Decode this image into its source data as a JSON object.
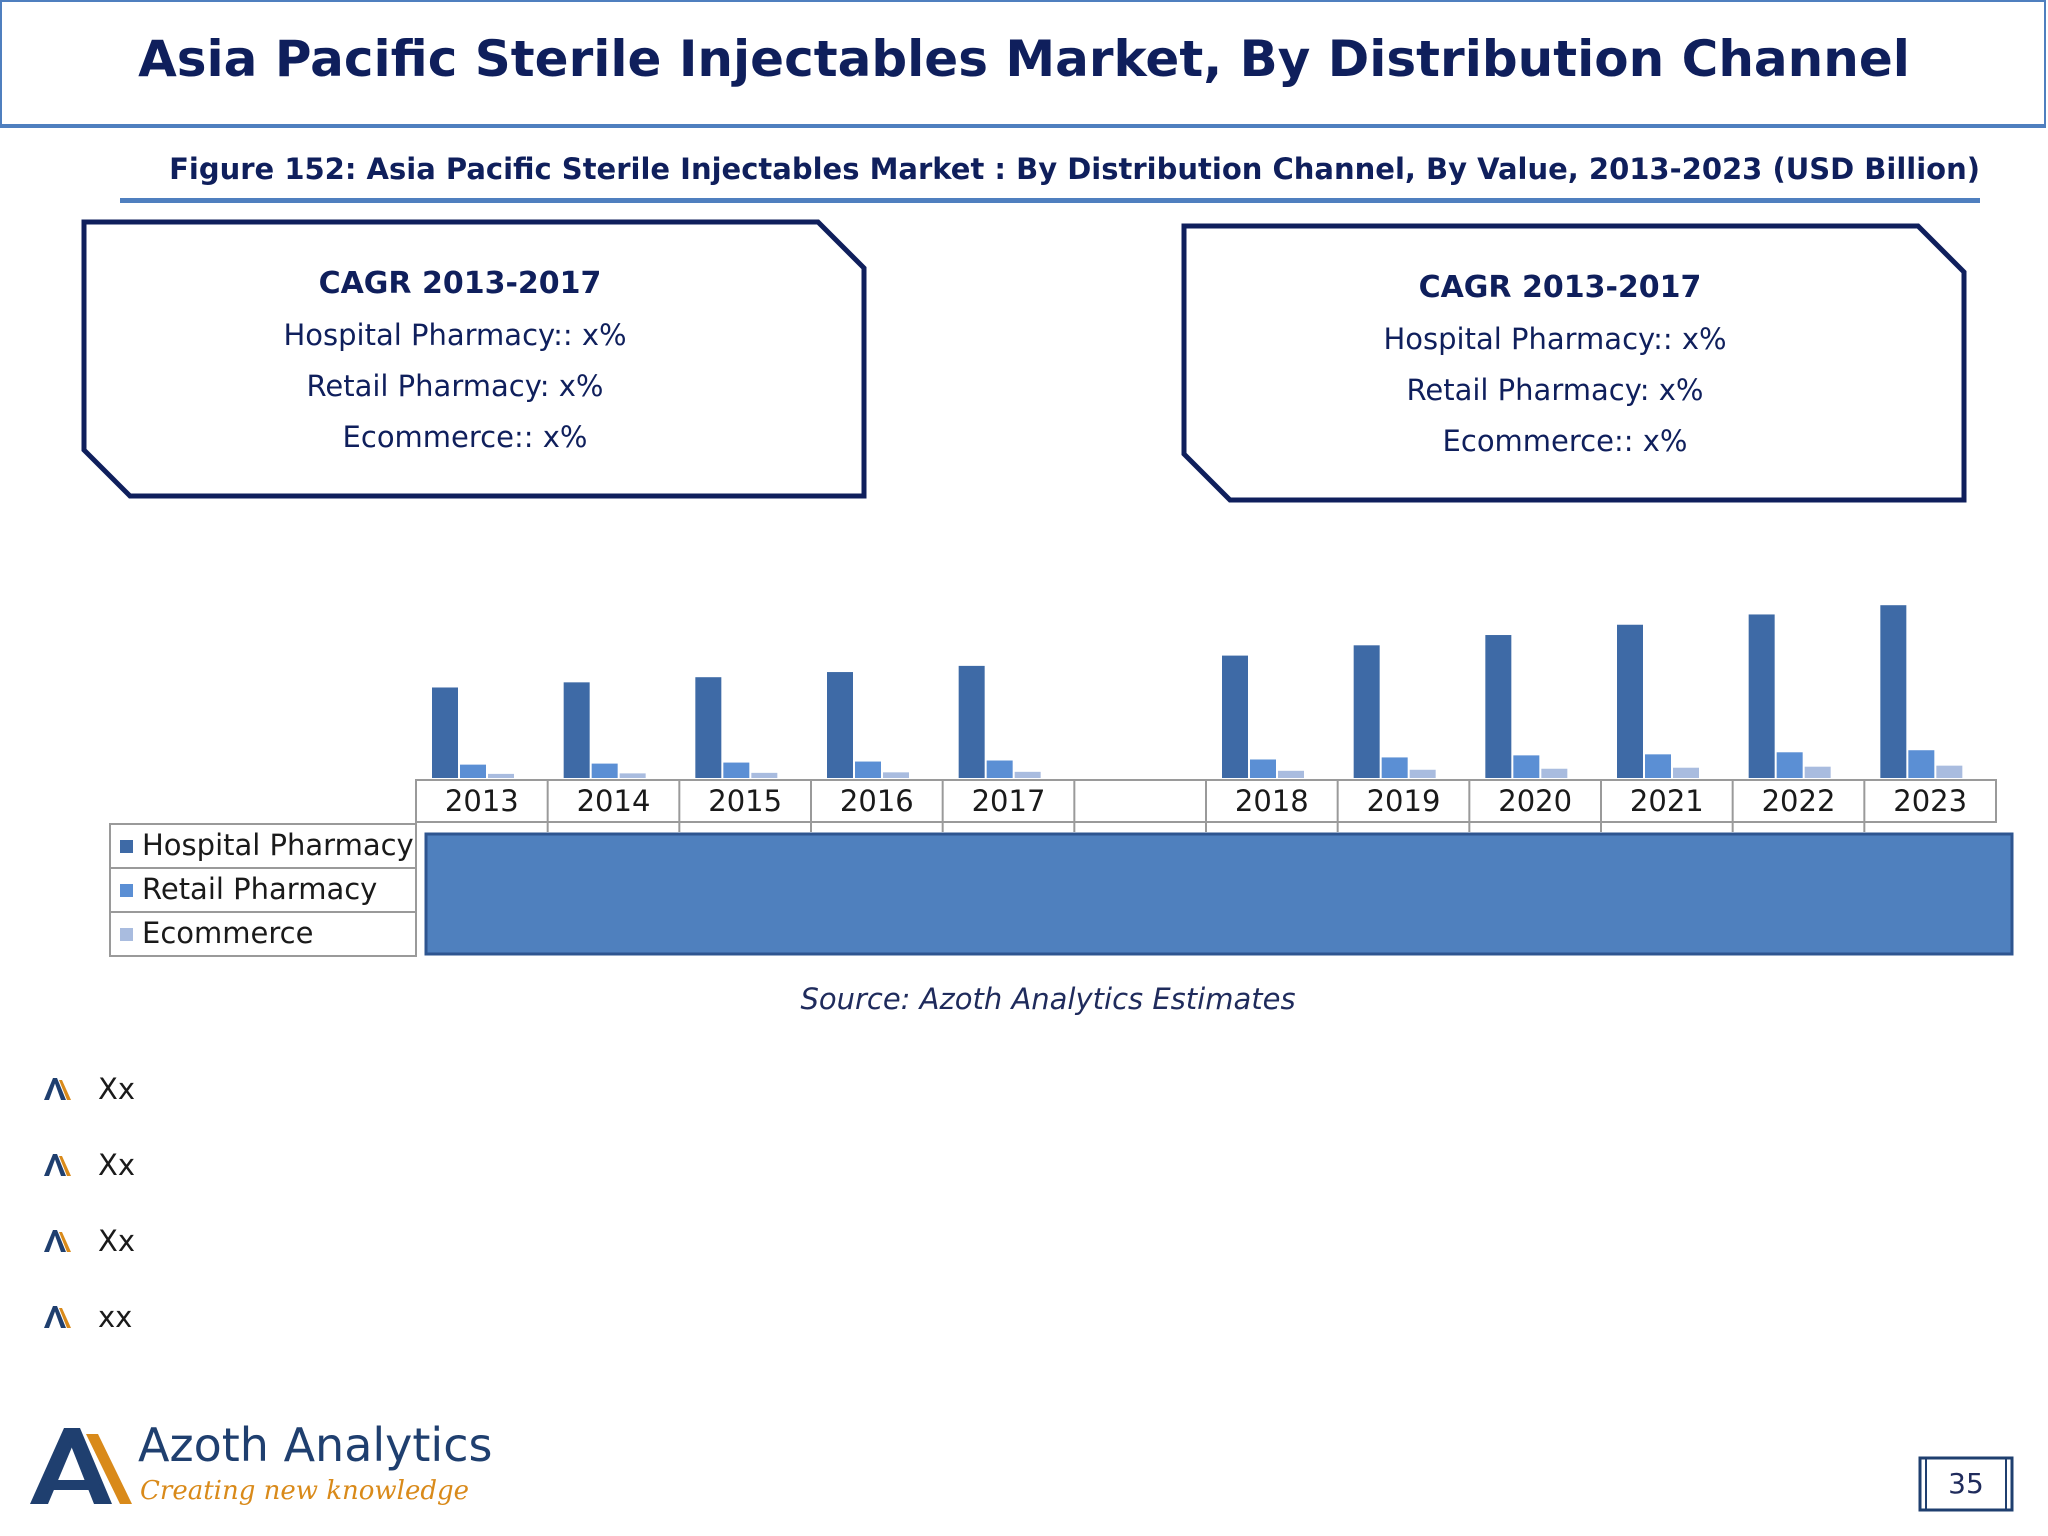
{
  "title": "Asia Pacific Sterile Injectables Market, By Distribution Channel",
  "figure_caption": "Figure 152: Asia Pacific Sterile Injectables Market : By Distribution Channel, By Value, 2013-2023 (USD Billion)",
  "cagr_boxes": [
    {
      "title": "CAGR 2013-2017",
      "lines": [
        "Hospital Pharmacy:: x%",
        "Retail Pharmacy: x%",
        "Ecommerce:: x%"
      ]
    },
    {
      "title": "CAGR 2013-2017",
      "lines": [
        "Hospital Pharmacy:: x%",
        "Retail Pharmacy: x%",
        "Ecommerce:: x%"
      ]
    }
  ],
  "chart_data": {
    "type": "bar",
    "categories": [
      "2013",
      "2014",
      "2015",
      "2016",
      "2017",
      "",
      "2018",
      "2019",
      "2020",
      "2021",
      "2022",
      "2023"
    ],
    "series": [
      {
        "name": "Hospital Pharmacy",
        "values": [
          8.8,
          9.3,
          9.8,
          10.3,
          10.9,
          null,
          11.9,
          12.9,
          13.9,
          14.9,
          15.9,
          16.8
        ],
        "color": "#3e6aa6"
      },
      {
        "name": "Retail Pharmacy",
        "values": [
          1.3,
          1.4,
          1.5,
          1.6,
          1.7,
          null,
          1.8,
          2.0,
          2.2,
          2.3,
          2.5,
          2.7
        ],
        "color": "#5b8fd4"
      },
      {
        "name": "Ecommerce",
        "values": [
          0.4,
          0.45,
          0.5,
          0.55,
          0.6,
          null,
          0.7,
          0.8,
          0.9,
          1.0,
          1.1,
          1.2
        ],
        "color": "#a9bcdf"
      }
    ],
    "ylim": [
      0,
      17.5
    ],
    "grid": false,
    "legend": "data-table"
  },
  "source": "Source: Azoth Analytics Estimates",
  "bullets": [
    "Xx",
    "Xx",
    "Xx",
    "xx"
  ],
  "logo": {
    "name": "Azoth Analytics",
    "tagline": "Creating new knowledge"
  },
  "page_number": "35"
}
